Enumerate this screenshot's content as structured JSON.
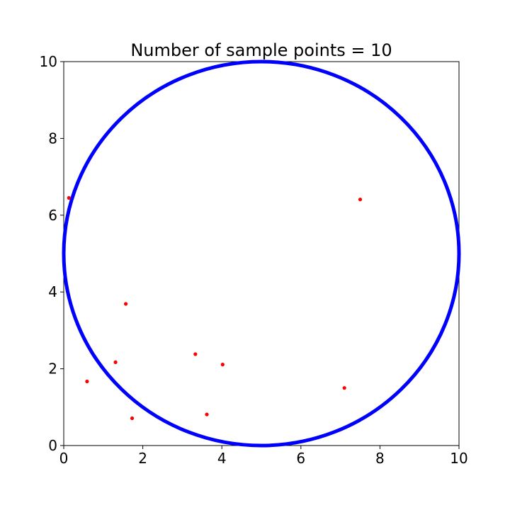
{
  "chart_data": {
    "type": "scatter",
    "title": "Number of sample points = 10",
    "xlabel": "",
    "ylabel": "",
    "xlim": [
      0,
      10
    ],
    "ylim": [
      0,
      10
    ],
    "xticks": [
      "0",
      "2",
      "4",
      "6",
      "8",
      "10"
    ],
    "yticks": [
      "0",
      "2",
      "4",
      "6",
      "8",
      "10"
    ],
    "grid": false,
    "colors": {
      "circle": "#0000ff",
      "points": "#ff0000",
      "axes": "#000000"
    },
    "circle": {
      "cx": 5,
      "cy": 5,
      "r": 5
    },
    "series": [
      {
        "x": [
          0.13,
          7.5,
          1.57,
          0.59,
          1.31,
          3.33,
          4.02,
          7.1,
          3.62,
          1.73
        ],
        "y": [
          6.45,
          6.41,
          3.69,
          1.67,
          2.17,
          2.38,
          2.11,
          1.5,
          0.81,
          0.71
        ]
      }
    ]
  }
}
